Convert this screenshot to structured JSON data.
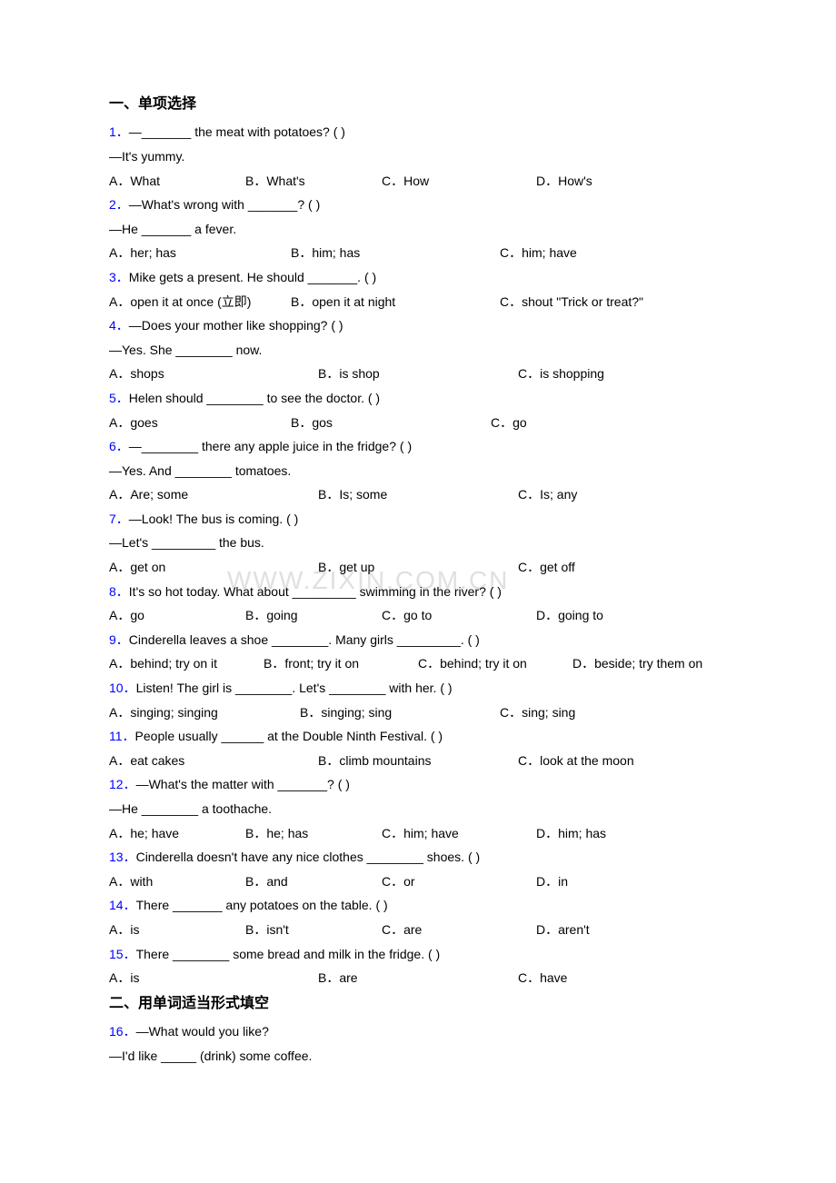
{
  "section1_heading": "一、单项选择",
  "section2_heading": "二、用单词适当形式填空",
  "watermark_text": "WWW.ZIXIN.COM.CN",
  "watermark_color": "#dcdcdc",
  "questions": [
    {
      "num": "1",
      "stem": "—_______ the meat with potatoes? (   )",
      "tail": "—It's yummy.",
      "opts": [
        "A．What",
        "B．What's",
        "C．How",
        "D．How's"
      ],
      "widths": [
        150,
        150,
        170,
        0
      ]
    },
    {
      "num": "2",
      "stem": "—What's wrong with _______? (   )",
      "tail": "—He _______ a fever.",
      "opts": [
        "A．her; has",
        "B．him; has",
        "C．him; have"
      ],
      "widths": [
        200,
        230,
        0
      ]
    },
    {
      "num": "3",
      "stem": "Mike gets a present. He should _______. (   )",
      "opts": [
        "A．open it at once (立即)",
        "B．open it at night",
        "C．shout \"Trick or treat?\""
      ],
      "widths": [
        200,
        230,
        0
      ]
    },
    {
      "num": "4",
      "stem": "—Does your mother like shopping? (    )",
      "tail": "—Yes. She ________ now.",
      "opts": [
        "A．shops",
        "B．is shop",
        "C．is shopping"
      ],
      "widths": [
        230,
        220,
        0
      ]
    },
    {
      "num": "5",
      "stem": "Helen should ________ to see the doctor. (    )",
      "opts": [
        "A．goes",
        "B．gos",
        "C．go"
      ],
      "widths": [
        200,
        220,
        0
      ]
    },
    {
      "num": "6",
      "stem": "—________ there any apple juice in the fridge? (    )",
      "tail": "—Yes. And ________ tomatoes.",
      "opts": [
        "A．Are; some",
        "B．Is; some",
        "C．Is; any"
      ],
      "widths": [
        230,
        220,
        0
      ]
    },
    {
      "num": "7",
      "stem": "—Look! The bus is coming. (   )",
      "tail": "—Let's _________ the bus.",
      "opts": [
        "A．get on",
        "B．get up",
        "C．get off"
      ],
      "widths": [
        230,
        220,
        0
      ]
    },
    {
      "num": "8",
      "stem": "It's so hot today. What about _________ swimming in the river? (   )",
      "opts": [
        "A．go",
        "B．going",
        "C．go to",
        "D．going to"
      ],
      "widths": [
        150,
        150,
        170,
        0
      ]
    },
    {
      "num": "9",
      "stem": "Cinderella leaves a shoe ________. Many girls _________. (   )",
      "opts": [
        "A．behind; try on it",
        "B．front; try it on",
        "C．behind; try it on",
        "D．beside; try them on"
      ],
      "widths": [
        170,
        170,
        170,
        0
      ]
    },
    {
      "num": "10",
      "stem": "Listen! The girl is ________. Let's ________ with her. (    )",
      "opts": [
        "A．singing; singing",
        "B．singing; sing",
        "C．sing; sing"
      ],
      "widths": [
        210,
        220,
        0
      ]
    },
    {
      "num": "11",
      "stem": "People usually ______ at the Double Ninth Festival. (    )",
      "opts": [
        "A．eat cakes",
        "B．climb mountains",
        "C．look at the moon"
      ],
      "widths": [
        230,
        220,
        0
      ]
    },
    {
      "num": "12",
      "stem": "—What's the matter with _______? (   )",
      "tail": "—He ________ a toothache.",
      "opts": [
        "A．he; have",
        "B．he; has",
        "C．him; have",
        "D．him; has"
      ],
      "widths": [
        150,
        150,
        170,
        0
      ]
    },
    {
      "num": "13",
      "stem": "Cinderella doesn't have any nice clothes ________ shoes. (   )",
      "opts": [
        "A．with",
        "B．and",
        "C．or",
        "D．in"
      ],
      "widths": [
        150,
        150,
        170,
        0
      ]
    },
    {
      "num": "14",
      "stem": "There _______ any potatoes on the table. (   )",
      "opts": [
        "A．is",
        "B．isn't",
        "C．are",
        "D．aren't"
      ],
      "widths": [
        150,
        150,
        170,
        0
      ]
    },
    {
      "num": "15",
      "stem": "There ________ some bread and milk in the fridge. (   )",
      "opts": [
        "A．is",
        "B．are",
        "C．have"
      ],
      "widths": [
        230,
        220,
        0
      ]
    }
  ],
  "fill_questions": [
    {
      "num": "16",
      "stem": "—What would you like?",
      "tail": "—I'd like _____ (drink) some coffee."
    }
  ]
}
